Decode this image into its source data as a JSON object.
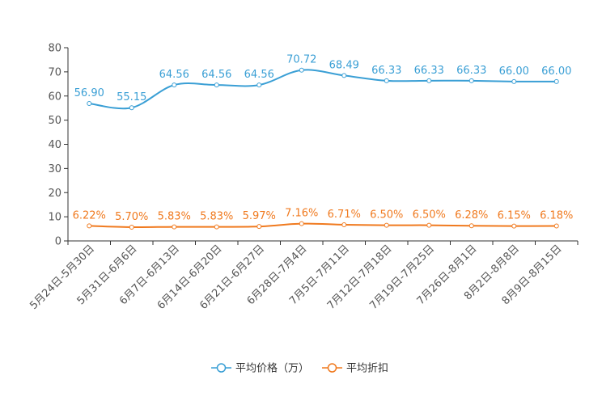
{
  "chart_data": {
    "type": "line",
    "title": "",
    "xlabel": "",
    "ylabel": "",
    "ylim": [
      0,
      80
    ],
    "yticks": [
      0,
      10,
      20,
      30,
      40,
      50,
      60,
      70,
      80
    ],
    "grid": false,
    "legend_position": "bottom-center",
    "categories": [
      "5月24日-5月30日",
      "5月31日-6月6日",
      "6月7日-6月13日",
      "6月14日-6月20日",
      "6月21日-6月27日",
      "6月28日-7月4日",
      "7月5日-7月11日",
      "7月12日-7月18日",
      "7月19日-7月25日",
      "7月26日-8月1日",
      "8月2日-8月8日",
      "8月9日-8月15日"
    ],
    "series": [
      {
        "name": "平均价格（万）",
        "color": "#3a9fd5",
        "values": [
          56.9,
          55.15,
          64.56,
          64.56,
          64.56,
          70.72,
          68.49,
          66.33,
          66.33,
          66.33,
          66.0,
          66.0
        ],
        "labels": [
          "56.90",
          "55.15",
          "64.56",
          "64.56",
          "64.56",
          "70.72",
          "68.49",
          "66.33",
          "66.33",
          "66.33",
          "66.00",
          "66.00"
        ]
      },
      {
        "name": "平均折扣",
        "color": "#f07a1f",
        "values": [
          6.22,
          5.7,
          5.83,
          5.83,
          5.97,
          7.16,
          6.71,
          6.5,
          6.5,
          6.28,
          6.15,
          6.18
        ],
        "labels": [
          "6.22%",
          "5.70%",
          "5.83%",
          "5.83%",
          "5.97%",
          "7.16%",
          "6.71%",
          "6.50%",
          "6.50%",
          "6.28%",
          "6.15%",
          "6.18%"
        ]
      }
    ]
  }
}
